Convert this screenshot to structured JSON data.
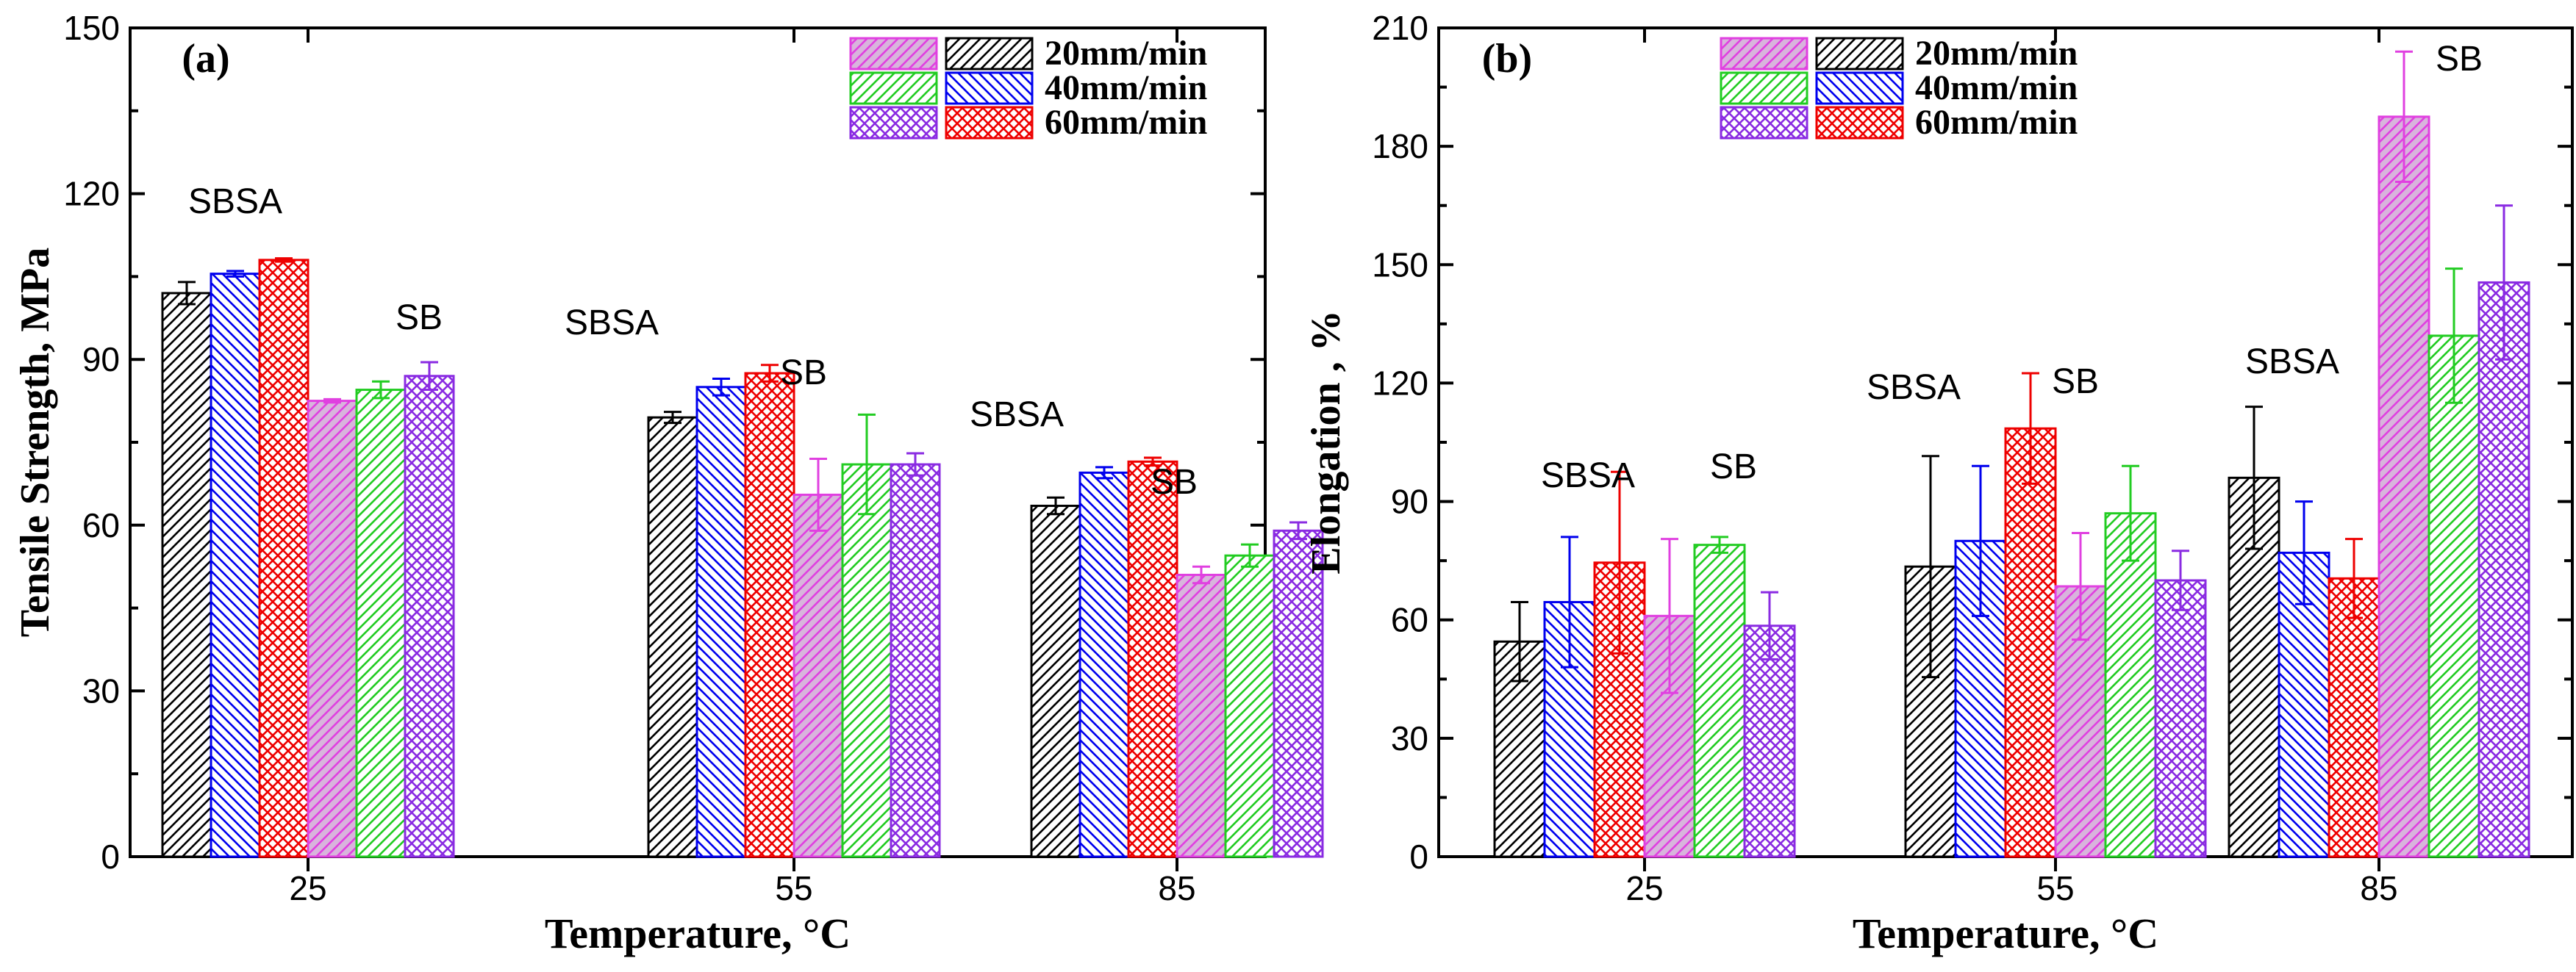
{
  "chart_data": [
    {
      "panel_label": "(a)",
      "type": "bar",
      "xlabel": "Temperature, °C",
      "ylabel": "Tensile Strength, MPa",
      "ylim": [
        0,
        150
      ],
      "yticks": [
        "0",
        "30",
        "60",
        "90",
        "120",
        "150"
      ],
      "categories": [
        "25",
        "55",
        "85"
      ],
      "group_labels": [
        {
          "category": "25",
          "sbsa": "SBSA",
          "sb": "SB"
        },
        {
          "category": "55",
          "sbsa": "SBSA",
          "sb": "SB"
        },
        {
          "category": "85",
          "sbsa": "SBSA",
          "sb": "SB"
        }
      ],
      "legend": [
        {
          "rate": "20mm/min",
          "sb_color": "#e040e0",
          "sbsa_color": "#000000"
        },
        {
          "rate": "40mm/min",
          "sb_color": "#22cc22",
          "sbsa_color": "#0000ee"
        },
        {
          "rate": "60mm/min",
          "sb_color": "#8a2be2",
          "sbsa_color": "#ee0000"
        }
      ],
      "series": [
        {
          "name": "SBSA 20mm/min",
          "material": "SBSA",
          "rate": "20mm/min",
          "values": [
            102,
            79.5,
            63.5
          ],
          "errors": [
            2.0,
            1.0,
            1.5
          ]
        },
        {
          "name": "SBSA 40mm/min",
          "material": "SBSA",
          "rate": "40mm/min",
          "values": [
            105.5,
            85,
            69.5
          ],
          "errors": [
            0.5,
            1.5,
            1.0
          ]
        },
        {
          "name": "SBSA 60mm/min",
          "material": "SBSA",
          "rate": "60mm/min",
          "values": [
            108,
            87.5,
            71.5
          ],
          "errors": [
            0.3,
            1.5,
            0.7
          ]
        },
        {
          "name": "SB 20mm/min",
          "material": "SB",
          "rate": "20mm/min",
          "values": [
            82.5,
            65.5,
            51
          ],
          "errors": [
            0.3,
            6.5,
            1.5
          ]
        },
        {
          "name": "SB 40mm/min",
          "material": "SB",
          "rate": "40mm/min",
          "values": [
            84.5,
            71,
            54.5
          ],
          "errors": [
            1.5,
            9,
            2.0
          ]
        },
        {
          "name": "SB 60mm/min",
          "material": "SB",
          "rate": "60mm/min",
          "values": [
            87,
            71,
            59
          ],
          "errors": [
            2.5,
            2.0,
            1.5
          ]
        }
      ]
    },
    {
      "panel_label": "(b)",
      "type": "bar",
      "xlabel": "Temperature, °C",
      "ylabel": "Elongation , %",
      "ylim": [
        0,
        210
      ],
      "yticks": [
        "0",
        "30",
        "60",
        "90",
        "120",
        "150",
        "180",
        "210"
      ],
      "categories": [
        "25",
        "55",
        "85"
      ],
      "group_labels": [
        {
          "category": "25",
          "sbsa": "SBSA",
          "sb": "SB"
        },
        {
          "category": "55",
          "sbsa": "SBSA",
          "sb": "SB"
        },
        {
          "category": "85",
          "sbsa": "SBSA",
          "sb": "SB"
        }
      ],
      "legend": [
        {
          "rate": "20mm/min",
          "sb_color": "#e040e0",
          "sbsa_color": "#000000"
        },
        {
          "rate": "40mm/min",
          "sb_color": "#22cc22",
          "sbsa_color": "#0000ee"
        },
        {
          "rate": "60mm/min",
          "sb_color": "#8a2be2",
          "sbsa_color": "#ee0000"
        }
      ],
      "series": [
        {
          "name": "SBSA 20mm/min",
          "material": "SBSA",
          "rate": "20mm/min",
          "values": [
            54.5,
            73.5,
            96
          ],
          "errors": [
            10,
            28,
            18
          ]
        },
        {
          "name": "SBSA 40mm/min",
          "material": "SBSA",
          "rate": "40mm/min",
          "values": [
            64.5,
            80,
            77
          ],
          "errors": [
            16.5,
            19,
            13
          ]
        },
        {
          "name": "SBSA 60mm/min",
          "material": "SBSA",
          "rate": "60mm/min",
          "values": [
            74.5,
            108.5,
            70.5
          ],
          "errors": [
            23,
            14,
            10
          ]
        },
        {
          "name": "SB 20mm/min",
          "material": "SB",
          "rate": "20mm/min",
          "values": [
            61,
            68.5,
            187.5
          ],
          "errors": [
            19.5,
            13.5,
            16.5
          ]
        },
        {
          "name": "SB 40mm/min",
          "material": "SB",
          "rate": "40mm/min",
          "values": [
            79,
            87,
            132
          ],
          "errors": [
            2,
            12,
            17
          ]
        },
        {
          "name": "SB 60mm/min",
          "material": "SB",
          "rate": "60mm/min",
          "values": [
            58.5,
            70,
            145.5
          ],
          "errors": [
            8.5,
            7.5,
            19.5
          ]
        }
      ]
    }
  ]
}
